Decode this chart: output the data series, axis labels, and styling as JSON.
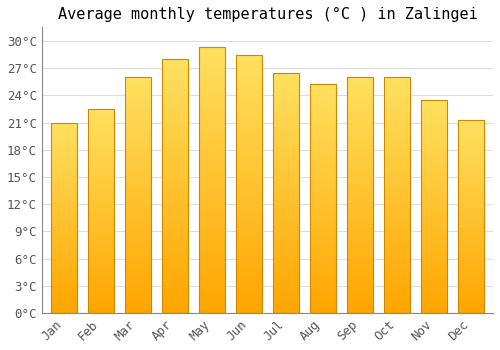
{
  "months": [
    "Jan",
    "Feb",
    "Mar",
    "Apr",
    "May",
    "Jun",
    "Jul",
    "Aug",
    "Sep",
    "Oct",
    "Nov",
    "Dec"
  ],
  "temperatures": [
    21.0,
    22.5,
    26.0,
    28.0,
    29.3,
    28.5,
    26.5,
    25.3,
    26.0,
    26.0,
    23.5,
    21.3
  ],
  "title": "Average monthly temperatures (°C ) in Zalingei",
  "ytick_values": [
    0,
    3,
    6,
    9,
    12,
    15,
    18,
    21,
    24,
    27,
    30
  ],
  "ytick_labels": [
    "0°C",
    "3°C",
    "6°C",
    "9°C",
    "12°C",
    "15°C",
    "18°C",
    "21°C",
    "24°C",
    "27°C",
    "30°C"
  ],
  "ylim": [
    0,
    31.5
  ],
  "bar_color_bottom": "#FFA500",
  "bar_color_top": "#FFD700",
  "bar_edge_color": "#CC8800",
  "background_color": "#FFFFFF",
  "grid_color": "#DDDDDD",
  "title_fontsize": 11,
  "axis_fontsize": 9
}
